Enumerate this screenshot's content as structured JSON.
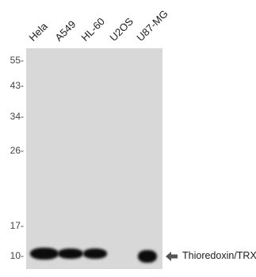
{
  "lanes": [
    {
      "label": "Hela"
    },
    {
      "label": "A549"
    },
    {
      "label": "HL-60"
    },
    {
      "label": "U2OS"
    },
    {
      "label": "U87-MG"
    }
  ],
  "markers": [
    {
      "label": "55-",
      "kda": 55
    },
    {
      "label": "43-",
      "kda": 43
    },
    {
      "label": "34-",
      "kda": 34
    },
    {
      "label": "26-",
      "kda": 26
    },
    {
      "label": "17-",
      "kda": 17
    },
    {
      "label": "10-",
      "kda": 10
    }
  ],
  "target": {
    "label": "Thioredoxin/TRX",
    "arrow_icon": "left-arrow-icon"
  },
  "colors": {
    "membrane": "#d8d8d8",
    "band": "#0c0c0c",
    "arrow": "#555555"
  }
}
